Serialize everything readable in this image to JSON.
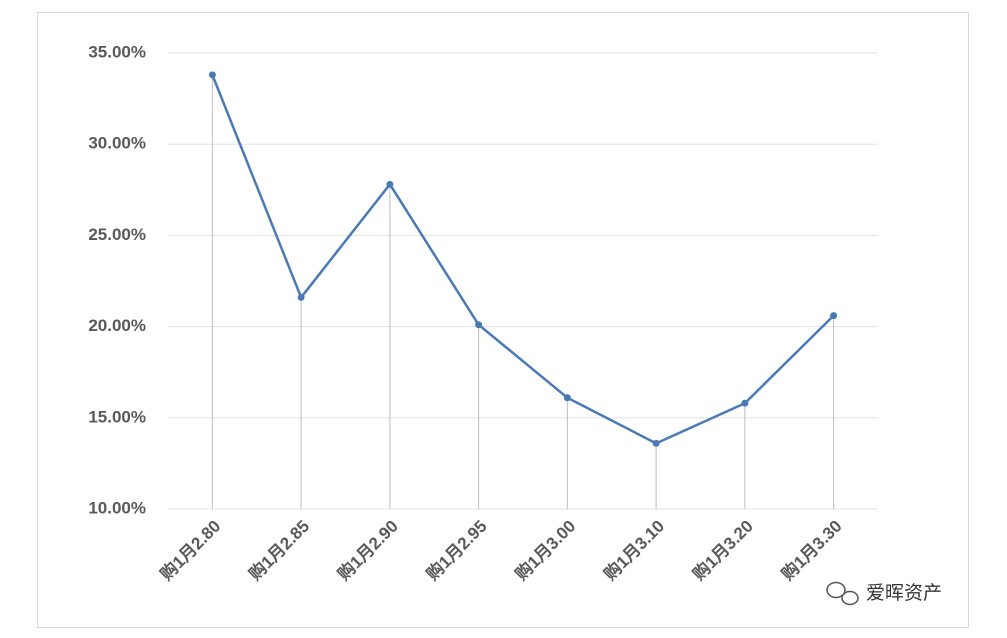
{
  "chart_data": {
    "type": "line",
    "categories": [
      "购1月2.80",
      "购1月2.85",
      "购1月2.90",
      "购1月2.95",
      "购1月3.00",
      "购1月3.10",
      "购1月3.20",
      "购1月3.30"
    ],
    "series": [
      {
        "color": "#4a7ab5",
        "values": [
          33.8,
          21.6,
          27.8,
          20.1,
          16.1,
          13.6,
          15.8,
          20.6
        ]
      }
    ],
    "ylim": [
      10,
      35
    ],
    "yticks": [
      {
        "value": 10,
        "label": "10.00%"
      },
      {
        "value": 15,
        "label": "15.00%"
      },
      {
        "value": 20,
        "label": "20.00%"
      },
      {
        "value": 25,
        "label": "25.00%"
      },
      {
        "value": 30,
        "label": "30.00%"
      },
      {
        "value": 35,
        "label": "35.00%"
      }
    ],
    "grid": true,
    "drop_lines": true,
    "watermark": "爱晖资产"
  }
}
